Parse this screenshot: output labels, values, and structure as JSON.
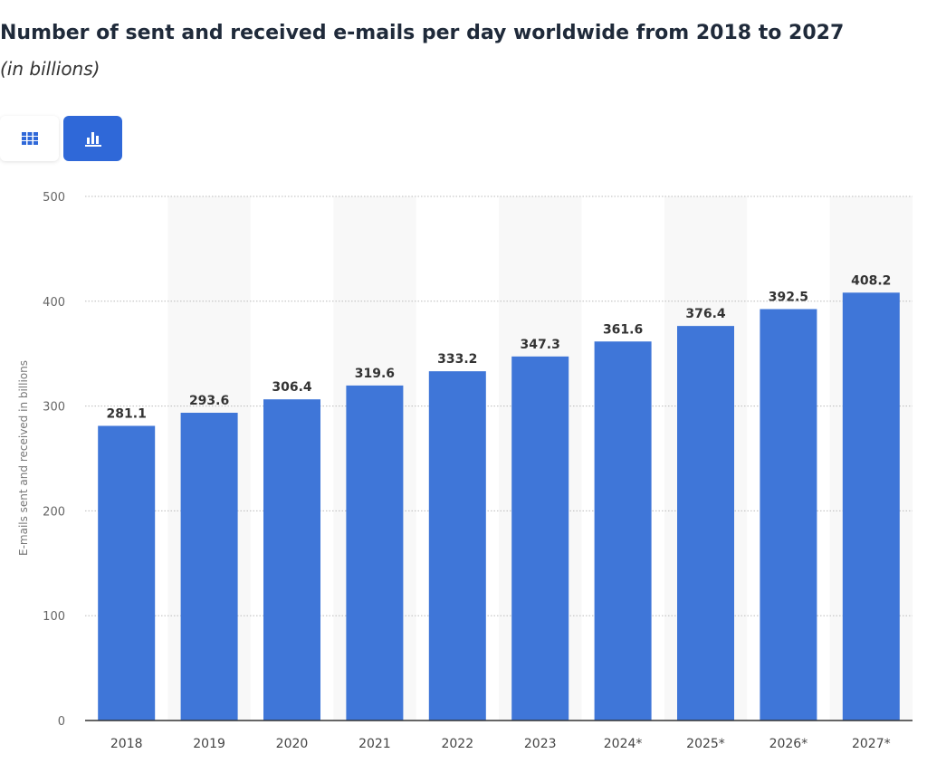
{
  "title": "Number of sent and received e-mails per day worldwide from 2018 to 2027",
  "subtitle": "(in billions)",
  "toolbar": {
    "table_icon": "grid-icon",
    "chart_icon": "bar-chart-icon",
    "active": "chart",
    "accent": "#2f68d8"
  },
  "chart_data": {
    "type": "bar",
    "title": "Number of sent and received e-mails per day worldwide from 2018 to 2027",
    "subtitle": "(in billions)",
    "categories": [
      "2018",
      "2019",
      "2020",
      "2021",
      "2022",
      "2023",
      "2024*",
      "2025*",
      "2026*",
      "2027*"
    ],
    "values": [
      281.1,
      293.6,
      306.4,
      319.6,
      333.2,
      347.3,
      361.6,
      376.4,
      392.5,
      408.2
    ],
    "value_labels": [
      "281.1",
      "293.6",
      "306.4",
      "319.6",
      "333.2",
      "347.3",
      "361.6",
      "376.4",
      "392.5",
      "408.2"
    ],
    "xlabel": "",
    "ylabel": "E-mails sent and received in billions",
    "ylim": [
      0,
      500
    ],
    "yticks": [
      0,
      100,
      200,
      300,
      400,
      500
    ],
    "grid": true,
    "bar_color": "#3f76d8"
  }
}
